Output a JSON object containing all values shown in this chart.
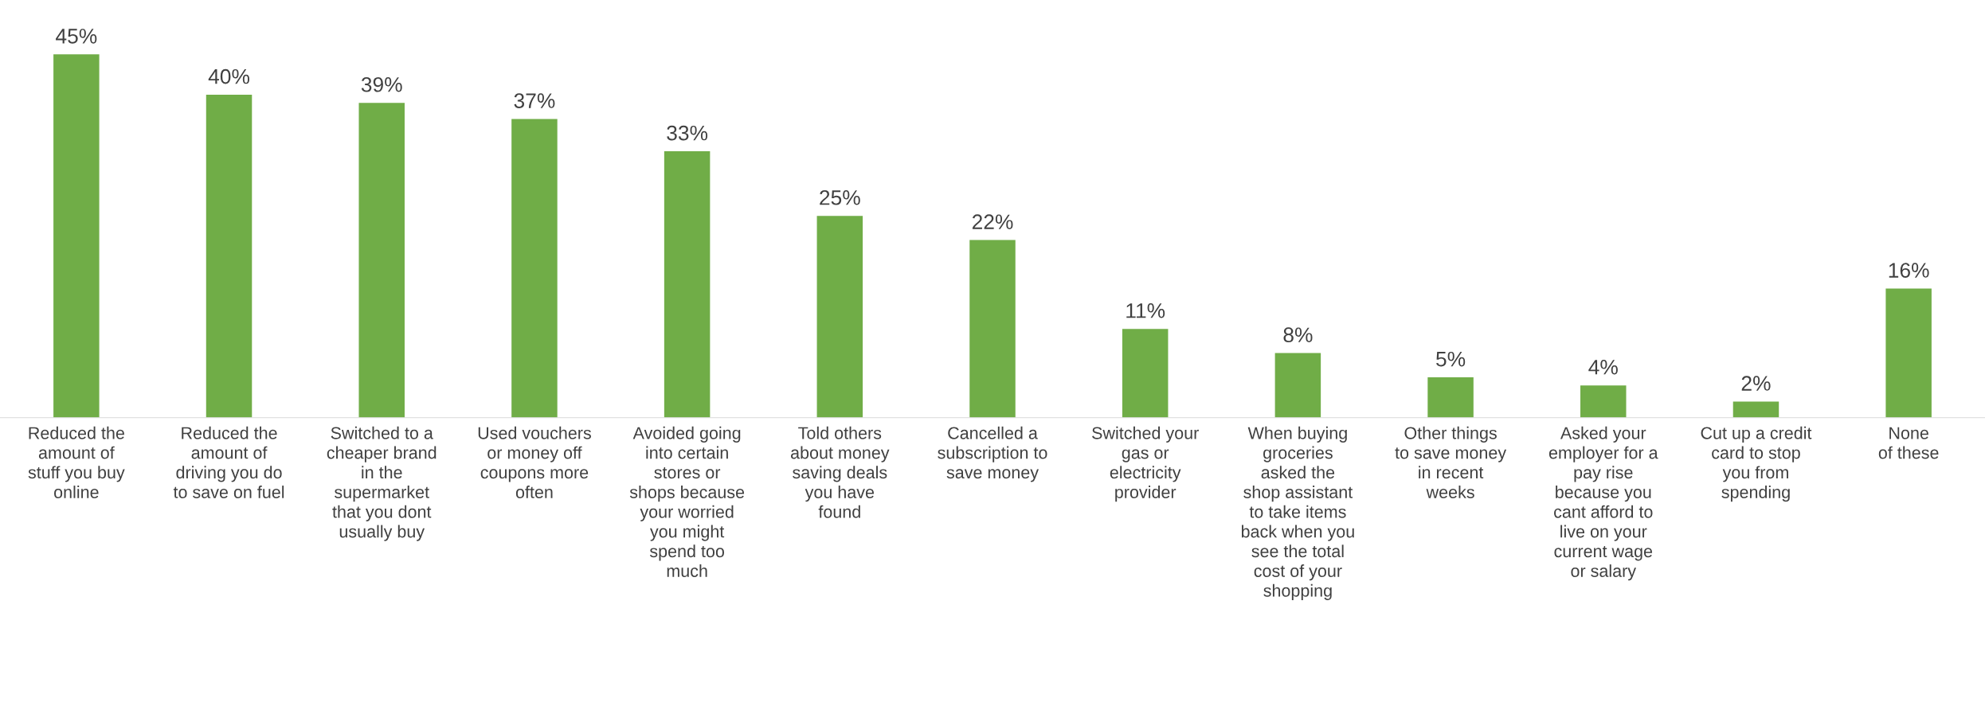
{
  "chart_data": {
    "type": "bar",
    "categories": [
      "Reduced the\namount of\nstuff you buy\nonline",
      "Reduced the\namount of\ndriving you do\nto save on fuel",
      "Switched to a\ncheaper brand\nin the\nsupermarket\nthat you dont\nusually buy",
      "Used vouchers\nor money off\ncoupons more\noften",
      "Avoided going\ninto certain\nstores or\nshops because\nyour worried\nyou might\nspend too\nmuch",
      "Told others\nabout money\nsaving deals\nyou have\nfound",
      "Cancelled a\nsubscription to\nsave money",
      "Switched your\ngas or\nelectricity\nprovider",
      "When buying\ngroceries\nasked the\nshop assistant\nto take items\nback when you\nsee the total\ncost of your\nshopping",
      "Other things\nto save money\nin recent\nweeks",
      "Asked your\nemployer for a\npay rise\nbecause you\ncant afford to\nlive on your\ncurrent wage\nor salary",
      "Cut up a credit\ncard to stop\nyou from\nspending",
      "None\nof these"
    ],
    "values": [
      45,
      40,
      39,
      37,
      33,
      25,
      22,
      11,
      8,
      5,
      4,
      2,
      16
    ],
    "value_labels": [
      "45%",
      "40%",
      "39%",
      "37%",
      "33%",
      "25%",
      "22%",
      "11%",
      "8%",
      "5%",
      "4%",
      "2%",
      "16%"
    ],
    "color": "#70ad47",
    "grid": false,
    "legend": false
  }
}
